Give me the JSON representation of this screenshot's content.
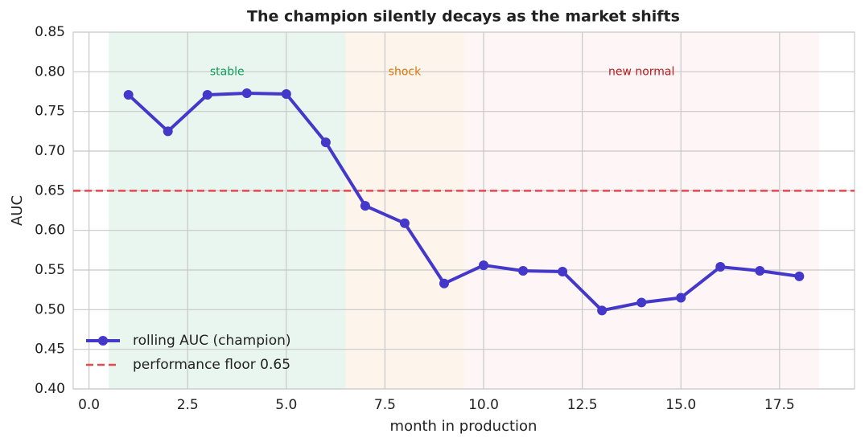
{
  "chart_data": {
    "type": "line",
    "title": "The champion silently decays as the market shifts",
    "x_label": "month in production",
    "y_label": "AUC",
    "x": [
      1,
      2,
      3,
      4,
      5,
      6,
      7,
      8,
      9,
      10,
      11,
      12,
      13,
      14,
      15,
      16,
      17,
      18
    ],
    "series": [
      {
        "name": "rolling AUC (champion)",
        "color": "#4338ca",
        "values": [
          0.771,
          0.725,
          0.771,
          0.773,
          0.772,
          0.711,
          0.631,
          0.609,
          0.533,
          0.556,
          0.549,
          0.548,
          0.499,
          0.509,
          0.515,
          0.554,
          0.549,
          0.542
        ]
      }
    ],
    "reference_line": {
      "name": "performance floor 0.65",
      "value": 0.65,
      "color": "#e5484d"
    },
    "regions": [
      {
        "label": "stable",
        "start": 0.5,
        "end": 6.5,
        "color": "#0f9d58",
        "text_color": "#0f9d58",
        "label_y": 0.8
      },
      {
        "label": "shock",
        "start": 6.5,
        "end": 9.5,
        "color": "#e58a1f",
        "text_color": "#d97706",
        "label_y": 0.8
      },
      {
        "label": "new normal",
        "start": 9.5,
        "end": 18.5,
        "color": "#f28b9a",
        "text_color": "#b91c1c",
        "label_y": 0.8
      }
    ],
    "xlim": [
      -0.4,
      19.4
    ],
    "ylim": [
      0.4,
      0.85
    ],
    "xticks": [
      {
        "value": 0,
        "label": "0.0"
      },
      {
        "value": 2.5,
        "label": "2.5"
      },
      {
        "value": 5,
        "label": "5.0"
      },
      {
        "value": 7.5,
        "label": "7.5"
      },
      {
        "value": 10,
        "label": "10.0"
      },
      {
        "value": 12.5,
        "label": "12.5"
      },
      {
        "value": 15,
        "label": "15.0"
      },
      {
        "value": 17.5,
        "label": "17.5"
      }
    ],
    "yticks": [
      {
        "value": 0.4,
        "label": "0.40"
      },
      {
        "value": 0.45,
        "label": "0.45"
      },
      {
        "value": 0.5,
        "label": "0.50"
      },
      {
        "value": 0.55,
        "label": "0.55"
      },
      {
        "value": 0.6,
        "label": "0.60"
      },
      {
        "value": 0.65,
        "label": "0.65"
      },
      {
        "value": 0.7,
        "label": "0.70"
      },
      {
        "value": 0.75,
        "label": "0.75"
      },
      {
        "value": 0.8,
        "label": "0.80"
      },
      {
        "value": 0.85,
        "label": "0.85"
      }
    ],
    "grid": true,
    "legend": "lower left"
  }
}
